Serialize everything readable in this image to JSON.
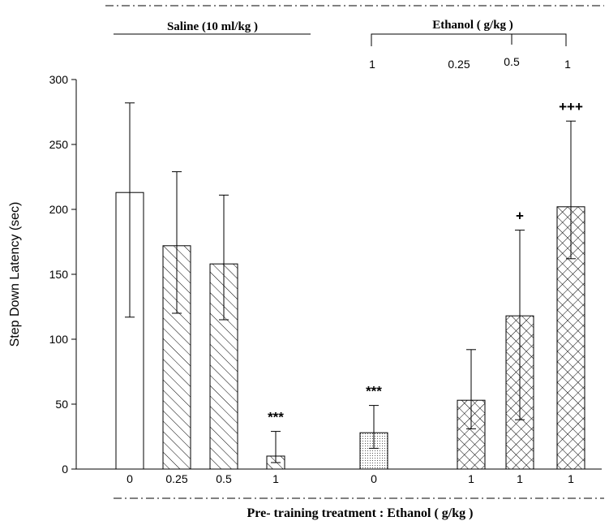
{
  "chart_data": {
    "type": "bar",
    "ylabel": "Step Down Latency (sec)",
    "xlabel": "Pre- training treatment : Ethanol ( g/kg )",
    "ylim": [
      0,
      300
    ],
    "yticks": [
      "0",
      "50",
      "100",
      "150",
      "200",
      "250",
      "300"
    ],
    "categories": [
      "0",
      "0.25",
      "0.5",
      "1",
      "0",
      "1",
      "1",
      "1"
    ],
    "values": [
      213,
      172,
      158,
      10,
      28,
      53,
      118,
      202
    ],
    "error_low": [
      117,
      120,
      115,
      5,
      16,
      31,
      38,
      162
    ],
    "error_high": [
      282,
      229,
      211,
      29,
      49,
      92,
      184,
      268
    ],
    "significance": [
      "",
      "",
      "",
      "***",
      "***",
      "",
      "+",
      "+++"
    ],
    "fills": [
      "white",
      "diagonal",
      "diagonal",
      "diagonal",
      "dotted",
      "crosshatch",
      "crosshatch",
      "crosshatch"
    ],
    "top_groups": {
      "saline": {
        "label": "Saline (10 ml/kg )"
      },
      "ethanol": {
        "label": "Ethanol ( g/kg )",
        "doses": [
          "1",
          "0.25",
          "0.5",
          "1"
        ]
      }
    }
  }
}
